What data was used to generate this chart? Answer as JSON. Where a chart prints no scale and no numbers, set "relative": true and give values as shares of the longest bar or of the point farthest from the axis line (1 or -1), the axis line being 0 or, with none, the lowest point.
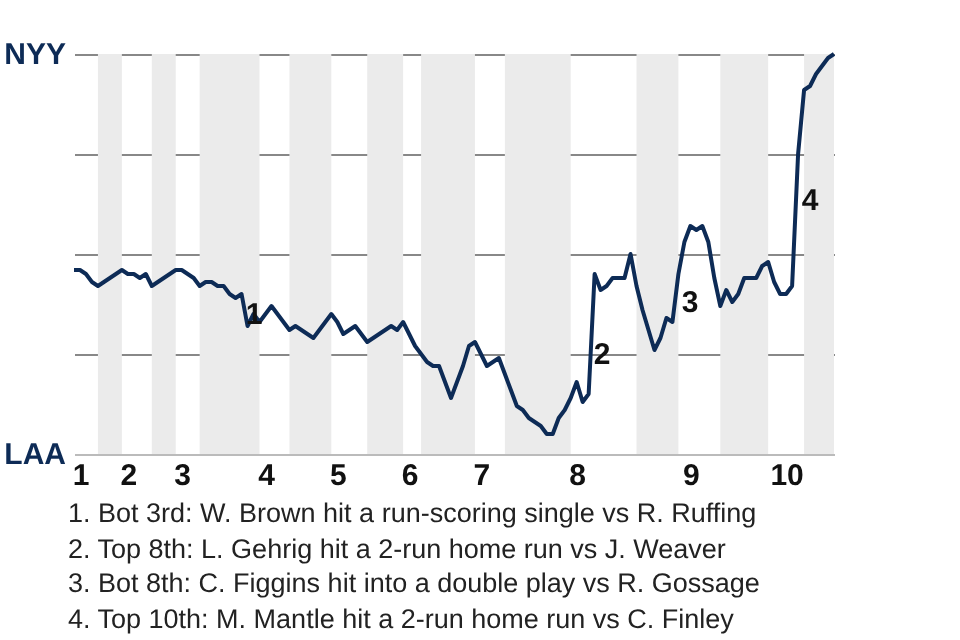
{
  "chart_data": {
    "type": "line",
    "categories": [
      null,
      "1",
      null,
      null,
      null,
      null,
      null,
      null,
      null,
      "2",
      null,
      null,
      null,
      null,
      null,
      null,
      null,
      null,
      "3",
      null,
      null,
      null,
      null,
      null,
      null,
      null,
      null,
      null,
      null,
      null,
      null,
      null,
      "4",
      null,
      null,
      null,
      null,
      null,
      null,
      null,
      null,
      null,
      null,
      null,
      "5",
      null,
      null,
      null,
      null,
      null,
      null,
      null,
      null,
      null,
      null,
      null,
      "6",
      null,
      null,
      null,
      null,
      null,
      null,
      null,
      null,
      null,
      null,
      null,
      "7",
      null,
      null,
      null,
      null,
      null,
      null,
      null,
      null,
      null,
      null,
      null,
      null,
      null,
      null,
      null,
      "8",
      null,
      null,
      null,
      null,
      null,
      null,
      null,
      null,
      null,
      null,
      null,
      null,
      null,
      null,
      null,
      null,
      null,
      null,
      "9",
      null,
      null,
      null,
      null,
      null,
      null,
      null,
      null,
      null,
      null,
      null,
      null,
      null,
      null,
      null,
      "10",
      null,
      null,
      null,
      null,
      null,
      null,
      null,
      null
    ],
    "series": [
      {
        "color": "#0d2b56",
        "values": [
          0.46,
          0.46,
          0.45,
          0.43,
          0.42,
          0.43,
          0.44,
          0.45,
          0.46,
          0.45,
          0.45,
          0.44,
          0.45,
          0.42,
          0.43,
          0.44,
          0.45,
          0.46,
          0.46,
          0.45,
          0.44,
          0.42,
          0.43,
          0.43,
          0.42,
          0.42,
          0.4,
          0.39,
          0.4,
          0.32,
          0.35,
          0.33,
          0.35,
          0.37,
          0.35,
          0.33,
          0.31,
          0.32,
          0.31,
          0.3,
          0.29,
          0.31,
          0.33,
          0.35,
          0.33,
          0.3,
          0.31,
          0.32,
          0.3,
          0.28,
          0.29,
          0.3,
          0.31,
          0.32,
          0.31,
          0.33,
          0.3,
          0.27,
          0.25,
          0.23,
          0.22,
          0.22,
          0.18,
          0.14,
          0.18,
          0.22,
          0.27,
          0.28,
          0.25,
          0.22,
          0.23,
          0.24,
          0.2,
          0.16,
          0.12,
          0.11,
          0.09,
          0.08,
          0.07,
          0.05,
          0.05,
          0.09,
          0.11,
          0.14,
          0.18,
          0.13,
          0.15,
          0.45,
          0.41,
          0.42,
          0.44,
          0.44,
          0.44,
          0.5,
          0.42,
          0.36,
          0.31,
          0.26,
          0.29,
          0.34,
          0.33,
          0.45,
          0.53,
          0.57,
          0.56,
          0.57,
          0.53,
          0.44,
          0.37,
          0.41,
          0.38,
          0.4,
          0.44,
          0.44,
          0.44,
          0.47,
          0.48,
          0.43,
          0.4,
          0.4,
          0.42,
          0.75,
          0.91,
          0.92,
          0.95,
          0.97,
          0.99,
          1
        ]
      }
    ],
    "relative": true,
    "tick_labels": "x",
    "grid": "y",
    "annotations": [
      "1",
      "2",
      "3",
      "4",
      "NYY",
      "LAA",
      "1. Bot 3rd: W. Brown hit a run-scoring single vs R. Ruffing",
      "2. Top 8th: L. Gehrig hit a 2-run home run vs J. Weaver",
      "3. Bot 8th: C. Figgins hit into a double play vs R. Gossage",
      "4. Top 10th: M. Mantle hit a 2-run home run vs C. Finley"
    ]
  }
}
